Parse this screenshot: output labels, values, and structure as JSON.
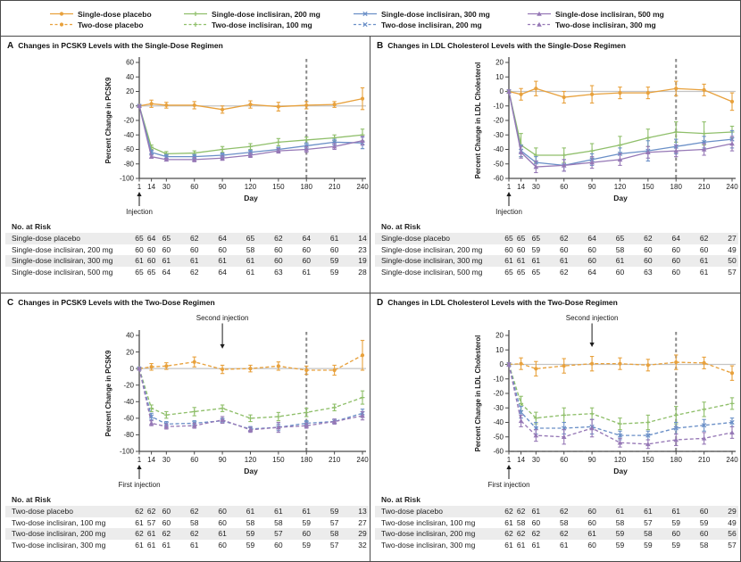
{
  "colors": {
    "placebo": "#E8A13C",
    "green": "#8FBF6A",
    "blue": "#6A8FC7",
    "purple": "#9678B6",
    "axis": "#4a4a4a",
    "zero_line": "#C4C4C4",
    "dash_line": "#8A8A8A"
  },
  "legend": {
    "rows": [
      [
        {
          "label": "Single-dose placebo",
          "color": "#E8A13C",
          "dash": false,
          "marker": "circle"
        },
        {
          "label": "Single-dose inclisiran, 200 mg",
          "color": "#8FBF6A",
          "dash": false,
          "marker": "plus"
        },
        {
          "label": "Single-dose inclisiran, 300 mg",
          "color": "#6A8FC7",
          "dash": false,
          "marker": "x"
        },
        {
          "label": "Single-dose inclisiran, 500 mg",
          "color": "#9678B6",
          "dash": false,
          "marker": "triangle"
        }
      ],
      [
        {
          "label": "Two-dose placebo",
          "color": "#E8A13C",
          "dash": true,
          "marker": "circle"
        },
        {
          "label": "Two-dose inclisiran, 100 mg",
          "color": "#8FBF6A",
          "dash": true,
          "marker": "plus"
        },
        {
          "label": "Two-dose inclisiran, 200 mg",
          "color": "#6A8FC7",
          "dash": true,
          "marker": "x"
        },
        {
          "label": "Two-dose inclisiran, 300 mg",
          "color": "#9678B6",
          "dash": true,
          "marker": "triangle"
        }
      ]
    ]
  },
  "chart_data": [
    {
      "type": "line",
      "panel": "A",
      "title": "Changes in PCSK9 Levels with the Single-Dose Regimen",
      "xlabel": "Day",
      "ylabel": "Percent Change in PCSK9",
      "x": [
        1,
        14,
        30,
        60,
        90,
        120,
        150,
        180,
        210,
        240
      ],
      "ylim": [
        -100,
        60
      ],
      "yticks": [
        60,
        40,
        20,
        0,
        -20,
        -40,
        -60,
        -80,
        -100
      ],
      "vline_x": 180,
      "injection_label": "Injection",
      "series": [
        {
          "name": "Single-dose placebo",
          "color": "#E8A13C",
          "dash": false,
          "marker": "circle",
          "values": [
            0,
            3,
            1,
            1,
            -5,
            2,
            -1,
            1,
            2,
            10
          ],
          "err": [
            2,
            5,
            4,
            5,
            5,
            5,
            6,
            5,
            4,
            15
          ]
        },
        {
          "name": "Single-dose inclisiran, 200 mg",
          "color": "#8FBF6A",
          "dash": false,
          "marker": "plus",
          "values": [
            0,
            -57,
            -66,
            -65,
            -60,
            -56,
            -50,
            -47,
            -44,
            -40
          ],
          "err": [
            1,
            3,
            3,
            3,
            4,
            4,
            5,
            4,
            4,
            8
          ]
        },
        {
          "name": "Single-dose inclisiran, 300 mg",
          "color": "#6A8FC7",
          "dash": false,
          "marker": "x",
          "values": [
            0,
            -64,
            -70,
            -70,
            -68,
            -64,
            -60,
            -55,
            -50,
            -51
          ],
          "err": [
            1,
            3,
            3,
            3,
            3,
            3,
            3,
            4,
            4,
            8
          ]
        },
        {
          "name": "Single-dose inclisiran, 500 mg",
          "color": "#9678B6",
          "dash": false,
          "marker": "triangle",
          "values": [
            0,
            -70,
            -74,
            -74,
            -72,
            -68,
            -62,
            -60,
            -56,
            -48
          ],
          "err": [
            1,
            2,
            2,
            3,
            3,
            3,
            3,
            4,
            4,
            6
          ]
        }
      ],
      "risk_header": "No. at Risk",
      "risk_rows": [
        {
          "label": "Single-dose placebo",
          "values": [
            65,
            64,
            65,
            62,
            64,
            65,
            62,
            64,
            61,
            14
          ]
        },
        {
          "label": "Single-dose inclisiran, 200 mg",
          "values": [
            60,
            60,
            60,
            60,
            60,
            58,
            60,
            60,
            60,
            23
          ]
        },
        {
          "label": "Single-dose inclisiran, 300 mg",
          "values": [
            61,
            60,
            61,
            61,
            61,
            61,
            60,
            60,
            59,
            19
          ]
        },
        {
          "label": "Single-dose inclisiran, 500 mg",
          "values": [
            65,
            65,
            64,
            62,
            64,
            61,
            63,
            61,
            59,
            28
          ]
        }
      ]
    },
    {
      "type": "line",
      "panel": "B",
      "title": "Changes in LDL Cholesterol Levels with the Single-Dose Regimen",
      "xlabel": "Day",
      "ylabel": "Percent Change in LDL Cholesterol",
      "x": [
        1,
        14,
        30,
        60,
        90,
        120,
        150,
        180,
        210,
        240
      ],
      "ylim": [
        -60,
        20
      ],
      "yticks": [
        20,
        10,
        0,
        -10,
        -20,
        -30,
        -40,
        -50,
        -60
      ],
      "vline_x": 180,
      "injection_label": "Injection",
      "series": [
        {
          "name": "Single-dose placebo",
          "color": "#E8A13C",
          "dash": false,
          "marker": "circle",
          "values": [
            0,
            -2,
            2,
            -4,
            -2,
            -1,
            -1,
            2,
            1,
            -7
          ],
          "err": [
            1,
            4,
            5,
            4,
            6,
            4,
            4,
            5,
            4,
            6
          ]
        },
        {
          "name": "Single-dose inclisiran, 200 mg",
          "color": "#8FBF6A",
          "dash": false,
          "marker": "plus",
          "values": [
            0,
            -37,
            -44,
            -44,
            -41,
            -37,
            -32,
            -28,
            -29,
            -28
          ],
          "err": [
            1,
            8,
            5,
            5,
            5,
            6,
            6,
            7,
            8,
            4
          ]
        },
        {
          "name": "Single-dose inclisiran, 300 mg",
          "color": "#6A8FC7",
          "dash": false,
          "marker": "x",
          "values": [
            0,
            -41,
            -49,
            -51,
            -47,
            -43,
            -41,
            -38,
            -35,
            -33
          ],
          "err": [
            1,
            4,
            4,
            4,
            4,
            4,
            7,
            5,
            4,
            6
          ]
        },
        {
          "name": "Single-dose inclisiran, 500 mg",
          "color": "#9678B6",
          "dash": false,
          "marker": "triangle",
          "values": [
            0,
            -42,
            -52,
            -51,
            -49,
            -47,
            -42,
            -41,
            -40,
            -36
          ],
          "err": [
            1,
            4,
            4,
            4,
            4,
            4,
            4,
            4,
            4,
            5
          ]
        }
      ],
      "risk_header": "No. at Risk",
      "risk_rows": [
        {
          "label": "Single-dose placebo",
          "values": [
            65,
            65,
            65,
            62,
            64,
            65,
            62,
            64,
            62,
            27
          ]
        },
        {
          "label": "Single-dose inclisiran, 200 mg",
          "values": [
            60,
            60,
            59,
            60,
            60,
            58,
            60,
            60,
            60,
            49
          ]
        },
        {
          "label": "Single-dose inclisiran, 300 mg",
          "values": [
            61,
            61,
            61,
            61,
            60,
            61,
            60,
            60,
            61,
            50
          ]
        },
        {
          "label": "Single-dose inclisiran, 500 mg",
          "values": [
            65,
            65,
            65,
            62,
            64,
            60,
            63,
            60,
            61,
            57
          ]
        }
      ]
    },
    {
      "type": "line",
      "panel": "C",
      "title": "Changes in PCSK9 Levels with the Two-Dose Regimen",
      "xlabel": "Day",
      "ylabel": "Percent Change in PCSK9",
      "x": [
        1,
        14,
        30,
        60,
        90,
        120,
        150,
        180,
        210,
        240
      ],
      "ylim": [
        -100,
        40
      ],
      "yticks": [
        40,
        20,
        0,
        -20,
        -40,
        -60,
        -80,
        -100
      ],
      "vline_x": 180,
      "injection_label": "First injection",
      "second_injection": {
        "x": 90,
        "label": "Second injection",
        "tip_value": 24
      },
      "series": [
        {
          "name": "Two-dose placebo",
          "color": "#E8A13C",
          "dash": true,
          "marker": "circle",
          "values": [
            0,
            2,
            3,
            8,
            -1,
            0,
            3,
            -2,
            -2,
            16
          ],
          "err": [
            1,
            4,
            4,
            6,
            5,
            4,
            5,
            5,
            6,
            18
          ]
        },
        {
          "name": "Two-dose inclisiran, 100 mg",
          "color": "#8FBF6A",
          "dash": true,
          "marker": "plus",
          "values": [
            0,
            -48,
            -56,
            -52,
            -48,
            -60,
            -58,
            -53,
            -47,
            -35
          ],
          "err": [
            1,
            4,
            4,
            5,
            4,
            4,
            5,
            5,
            4,
            8
          ]
        },
        {
          "name": "Two-dose inclisiran, 200 mg",
          "color": "#6A8FC7",
          "dash": true,
          "marker": "x",
          "values": [
            0,
            -58,
            -67,
            -66,
            -63,
            -73,
            -71,
            -66,
            -64,
            -54
          ],
          "err": [
            1,
            4,
            3,
            3,
            3,
            3,
            4,
            3,
            3,
            5
          ]
        },
        {
          "name": "Two-dose inclisiran, 300 mg",
          "color": "#9678B6",
          "dash": true,
          "marker": "triangle",
          "values": [
            0,
            -66,
            -70,
            -69,
            -62,
            -74,
            -71,
            -69,
            -64,
            -57
          ],
          "err": [
            1,
            3,
            3,
            3,
            4,
            3,
            6,
            3,
            3,
            5
          ]
        }
      ],
      "risk_header": "No. at Risk",
      "risk_rows": [
        {
          "label": "Two-dose placebo",
          "values": [
            62,
            62,
            60,
            62,
            60,
            61,
            61,
            61,
            59,
            13
          ]
        },
        {
          "label": "Two-dose inclisiran, 100 mg",
          "values": [
            61,
            57,
            60,
            58,
            60,
            58,
            58,
            59,
            57,
            27
          ]
        },
        {
          "label": "Two-dose inclisiran, 200 mg",
          "values": [
            62,
            61,
            62,
            62,
            61,
            59,
            57,
            60,
            58,
            29
          ]
        },
        {
          "label": "Two-dose inclisiran, 300 mg",
          "values": [
            61,
            61,
            61,
            61,
            60,
            59,
            60,
            59,
            57,
            32
          ]
        }
      ]
    },
    {
      "type": "line",
      "panel": "D",
      "title": "Changes in LDL Cholesterol Levels with the Two-Dose Regimen",
      "xlabel": "Day",
      "ylabel": "Percent Change in LDL Cholesterol",
      "x": [
        1,
        14,
        30,
        60,
        90,
        120,
        150,
        180,
        210,
        240
      ],
      "ylim": [
        -60,
        20
      ],
      "yticks": [
        20,
        10,
        0,
        -10,
        -20,
        -30,
        -40,
        -50,
        -60
      ],
      "vline_x": 180,
      "hline_dashed_y": -60,
      "injection_label": "First injection",
      "second_injection": {
        "x": 90,
        "label": "Second injection",
        "tip_value": 12
      },
      "series": [
        {
          "name": "Two-dose placebo",
          "color": "#E8A13C",
          "dash": true,
          "marker": "circle",
          "values": [
            0,
            0.5,
            -3,
            -1,
            0.5,
            0.5,
            -0.5,
            1.5,
            1,
            -6
          ],
          "err": [
            1,
            4,
            5,
            5,
            5,
            4,
            4,
            5,
            4,
            5
          ]
        },
        {
          "name": "Two-dose inclisiran, 100 mg",
          "color": "#8FBF6A",
          "dash": true,
          "marker": "plus",
          "values": [
            0,
            -27,
            -37,
            -35,
            -34,
            -41,
            -40,
            -35,
            -31,
            -27
          ],
          "err": [
            1,
            5,
            4,
            5,
            4,
            4,
            5,
            6,
            5,
            4
          ]
        },
        {
          "name": "Two-dose inclisiran, 200 mg",
          "color": "#6A8FC7",
          "dash": true,
          "marker": "x",
          "values": [
            0,
            -33,
            -44,
            -44,
            -43,
            -49,
            -49,
            -44,
            -42,
            -40
          ],
          "err": [
            1,
            4,
            4,
            4,
            5,
            3,
            3,
            4,
            4,
            3
          ]
        },
        {
          "name": "Two-dose inclisiran, 300 mg",
          "color": "#9678B6",
          "dash": true,
          "marker": "triangle",
          "values": [
            0,
            -39,
            -49,
            -50,
            -44,
            -54,
            -55,
            -52,
            -51,
            -47
          ],
          "err": [
            1,
            4,
            4,
            5,
            6,
            3,
            3,
            4,
            4,
            4
          ]
        }
      ],
      "risk_header": "No. at Risk",
      "risk_rows": [
        {
          "label": "Two-dose placebo",
          "values": [
            62,
            62,
            61,
            62,
            60,
            61,
            61,
            61,
            60,
            29
          ]
        },
        {
          "label": "Two-dose inclisiran, 100 mg",
          "values": [
            61,
            58,
            60,
            58,
            60,
            58,
            57,
            59,
            59,
            49
          ]
        },
        {
          "label": "Two-dose inclisiran, 200 mg",
          "values": [
            62,
            62,
            62,
            62,
            61,
            59,
            58,
            60,
            60,
            56
          ]
        },
        {
          "label": "Two-dose inclisiran, 300 mg",
          "values": [
            61,
            61,
            61,
            61,
            60,
            59,
            59,
            59,
            58,
            57
          ]
        }
      ]
    }
  ]
}
